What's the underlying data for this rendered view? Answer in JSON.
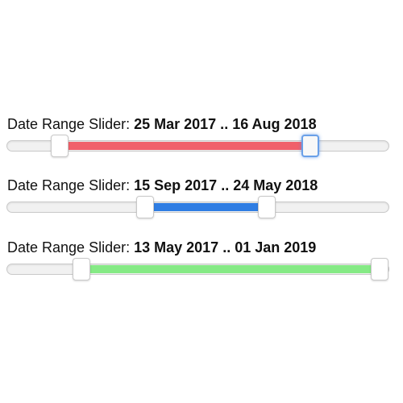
{
  "sliders": [
    {
      "label": "Date Range Slider:",
      "range_text": "25 Mar 2017 .. 16 Aug 2018",
      "start": 0.12,
      "end": 0.81,
      "color": "#f0606a",
      "focused_handle": "end"
    },
    {
      "label": "Date Range Slider:",
      "range_text": "15 Sep 2017 .. 24 May 2018",
      "start": 0.355,
      "end": 0.69,
      "color": "#2f7de3",
      "focused_handle": ""
    },
    {
      "label": "Date Range Slider:",
      "range_text": "13 May 2017 .. 01 Jan 2019",
      "start": 0.18,
      "end": 1.0,
      "color": "#85ea85",
      "focused_handle": ""
    }
  ]
}
